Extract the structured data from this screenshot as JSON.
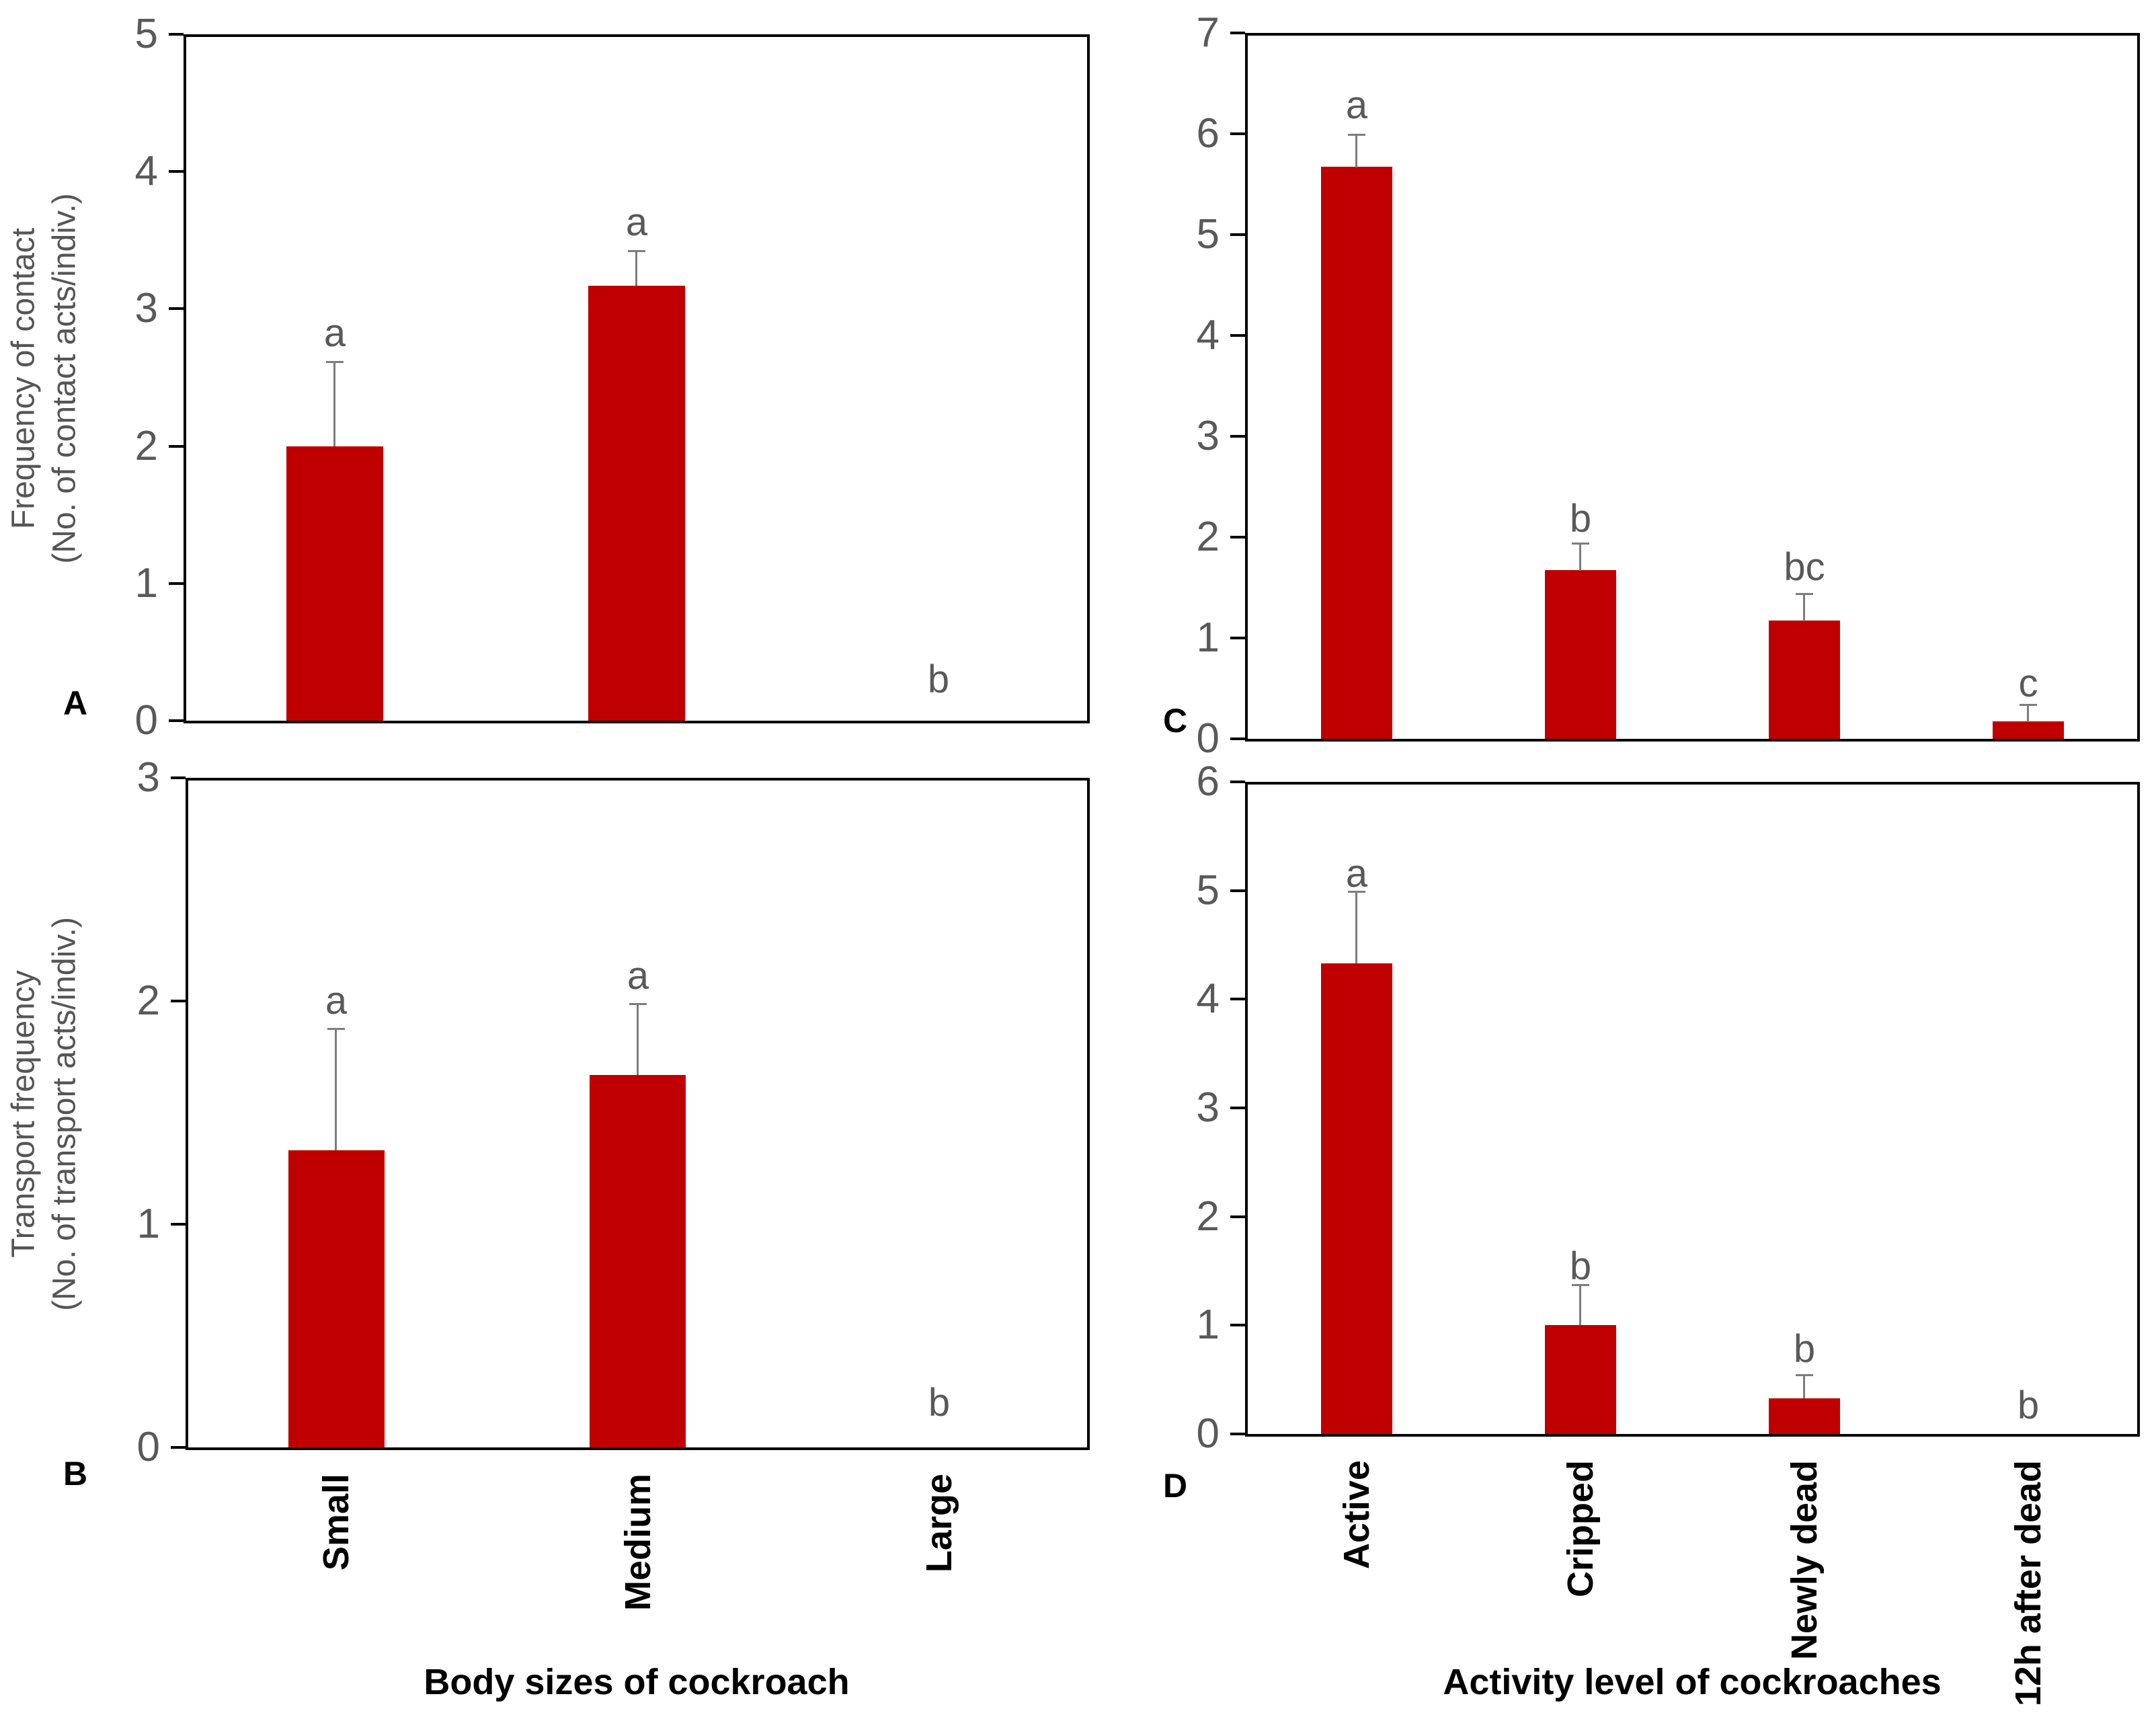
{
  "figure": {
    "background": "#ffffff",
    "bar_color": "#c00000",
    "error_bar_color": "#7d7d7d",
    "tick_label_color": "#595959",
    "sig_letter_color": "#595959",
    "axis_color": "#000000",
    "x_axis_titles": [
      "Body sizes of cockroach",
      "Activity level of cockroaches"
    ]
  },
  "chart_data": [
    {
      "type": "bar",
      "panel_label": "A",
      "title": "",
      "ylabel_lines": [
        "Frequency of contact",
        "(No. of contact acts/indiv.)"
      ],
      "xlabel": "Body sizes of cockroach",
      "categories": [
        "Small",
        "Medium",
        "Large"
      ],
      "values": [
        2.0,
        3.17,
        0
      ],
      "error_top": [
        2.62,
        3.43,
        null
      ],
      "sig_letters": [
        "a",
        "a",
        "b"
      ],
      "letter_y": [
        2.82,
        3.63,
        0.3
      ],
      "ylim": [
        0,
        5
      ],
      "yticks": [
        0,
        1,
        2,
        3,
        4,
        5
      ],
      "grid": false
    },
    {
      "type": "bar",
      "panel_label": "B",
      "title": "",
      "ylabel_lines": [
        "Transport frequency",
        "(No. of transport acts/indiv.)"
      ],
      "xlabel": "Body sizes of cockroach",
      "categories": [
        "Small",
        "Medium",
        "Large"
      ],
      "values": [
        1.33,
        1.67,
        0
      ],
      "error_top": [
        1.88,
        1.99,
        null
      ],
      "sig_letters": [
        "a",
        "a",
        "b"
      ],
      "letter_y": [
        2.0,
        2.11,
        0.2
      ],
      "ylim": [
        0,
        3
      ],
      "yticks": [
        0,
        1,
        2,
        3
      ],
      "grid": false
    },
    {
      "type": "bar",
      "panel_label": "C",
      "title": "",
      "ylabel_lines": [],
      "xlabel": "Activity level of cockroaches",
      "categories": [
        "Active",
        "Cripped",
        "Newly dead",
        "12h after dead"
      ],
      "values": [
        5.67,
        1.67,
        1.17,
        0.17
      ],
      "error_top": [
        6.0,
        1.95,
        1.45,
        0.35
      ],
      "sig_letters": [
        "a",
        "b",
        "bc",
        "c"
      ],
      "letter_y": [
        6.28,
        2.18,
        1.7,
        0.55
      ],
      "ylim": [
        0,
        7
      ],
      "yticks": [
        0,
        1,
        2,
        3,
        4,
        5,
        6,
        7
      ],
      "grid": false
    },
    {
      "type": "bar",
      "panel_label": "D",
      "title": "",
      "ylabel_lines": [],
      "xlabel": "Activity level of cockroaches",
      "categories": [
        "Active",
        "Cripped",
        "Newly dead",
        "12h after dead"
      ],
      "values": [
        4.33,
        1.0,
        0.33,
        0
      ],
      "error_top": [
        5.0,
        1.38,
        0.55,
        null
      ],
      "sig_letters": [
        "a",
        "b",
        "b",
        "b"
      ],
      "letter_y": [
        5.15,
        1.54,
        0.78,
        0.26
      ],
      "ylim": [
        0,
        6
      ],
      "yticks": [
        0,
        1,
        2,
        3,
        4,
        5,
        6
      ],
      "grid": false
    }
  ]
}
